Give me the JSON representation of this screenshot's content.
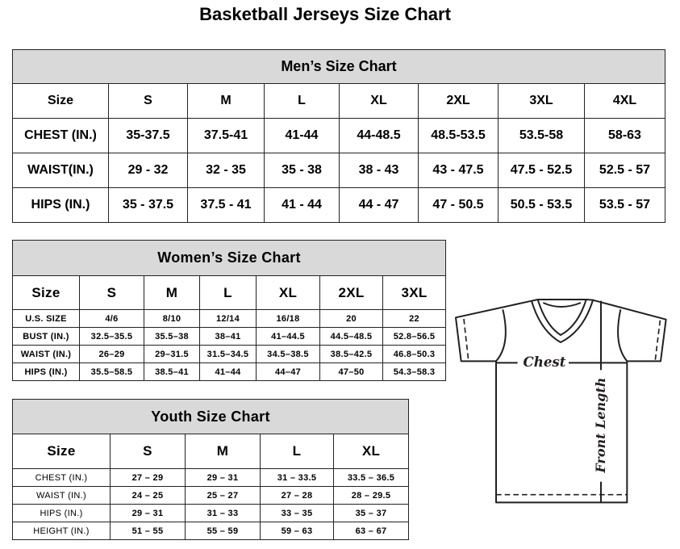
{
  "title": "Basketball Jerseys Size Chart",
  "men": {
    "caption": "Men’s Size Chart",
    "header": [
      "Size",
      "S",
      "M",
      "L",
      "XL",
      "2XL",
      "3XL",
      "4XL"
    ],
    "rows": [
      [
        "CHEST (IN.)",
        "35-37.5",
        "37.5-41",
        "41-44",
        "44-48.5",
        "48.5-53.5",
        "53.5-58",
        "58-63"
      ],
      [
        "WAIST(IN.)",
        "29 - 32",
        "32 - 35",
        "35 - 38",
        "38 - 43",
        "43 - 47.5",
        "47.5 - 52.5",
        "52.5 - 57"
      ],
      [
        "HIPS (IN.)",
        "35 - 37.5",
        "37.5 - 41",
        "41 - 44",
        "44 - 47",
        "47 - 50.5",
        "50.5 - 53.5",
        "53.5 - 57"
      ]
    ]
  },
  "women": {
    "caption": "Women’s Size Chart",
    "header": [
      "Size",
      "S",
      "M",
      "L",
      "XL",
      "2XL",
      "3XL"
    ],
    "rows": [
      [
        "U.S. SIZE",
        "4/6",
        "8/10",
        "12/14",
        "16/18",
        "20",
        "22"
      ],
      [
        "BUST (IN.)",
        "32.5–35.5",
        "35.5–38",
        "38–41",
        "41–44.5",
        "44.5–48.5",
        "52.8–56.5"
      ],
      [
        "WAIST (IN.)",
        "26–29",
        "29–31.5",
        "31.5–34.5",
        "34.5–38.5",
        "38.5–42.5",
        "46.8–50.3"
      ],
      [
        "HIPS (IN.)",
        "35.5–58.5",
        "38.5–41",
        "41–44",
        "44–47",
        "47–50",
        "54.3–58.3"
      ]
    ]
  },
  "youth": {
    "caption": "Youth Size Chart",
    "header": [
      "Size",
      "S",
      "M",
      "L",
      "XL"
    ],
    "rows": [
      [
        "CHEST (IN.)",
        "27 – 29",
        "29 – 31",
        "31 – 33.5",
        "33.5 – 36.5"
      ],
      [
        "WAIST (IN.)",
        "24 – 25",
        "25 – 27",
        "27 – 28",
        "28 – 29.5"
      ],
      [
        "HIPS (IN.)",
        "29 – 31",
        "31 – 33",
        "33 – 35",
        "35 – 37"
      ],
      [
        "HEIGHT (IN.)",
        "51 – 55",
        "55 – 59",
        "59 – 63",
        "63 – 67"
      ]
    ]
  },
  "diagram": {
    "chest_label": "Chest",
    "length_label": "Front Length",
    "icon": "t-shirt-icon"
  }
}
